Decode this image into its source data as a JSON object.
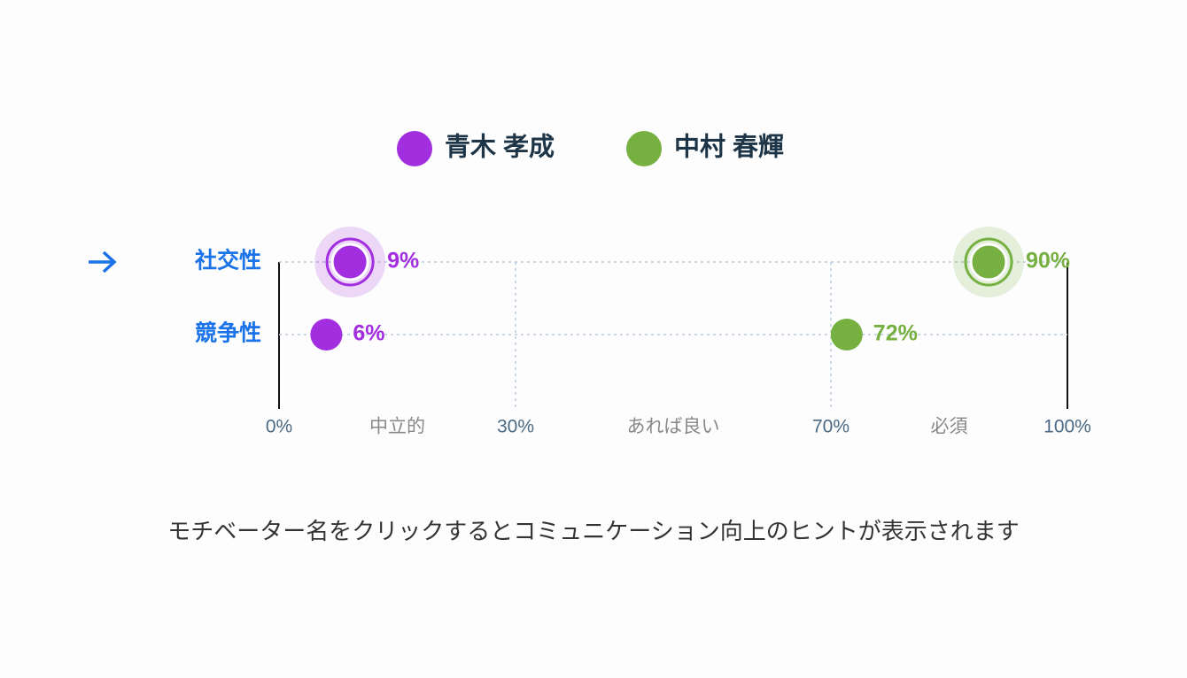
{
  "chart_data": {
    "type": "dot",
    "categories": [
      "社交性",
      "競争性"
    ],
    "selected": "社交性",
    "series": [
      {
        "name": "青木 孝成",
        "color": "#a22ee0",
        "values": [
          9,
          6
        ],
        "value_labels": [
          "9%",
          "6%"
        ]
      },
      {
        "name": "中村 春輝",
        "color": "#76b041",
        "values": [
          90,
          72
        ],
        "value_labels": [
          "90%",
          "72%"
        ]
      }
    ],
    "xlim": [
      0,
      100
    ],
    "xticks": [
      {
        "value": 0,
        "label": "0%"
      },
      {
        "value": 30,
        "label": "30%"
      },
      {
        "value": 70,
        "label": "70%"
      },
      {
        "value": 100,
        "label": "100%"
      }
    ],
    "zones": [
      "中立的",
      "あれば良い",
      "必須"
    ],
    "note": "モチベーター名をクリックするとコミュニケーション向上のヒントが表示されます"
  }
}
